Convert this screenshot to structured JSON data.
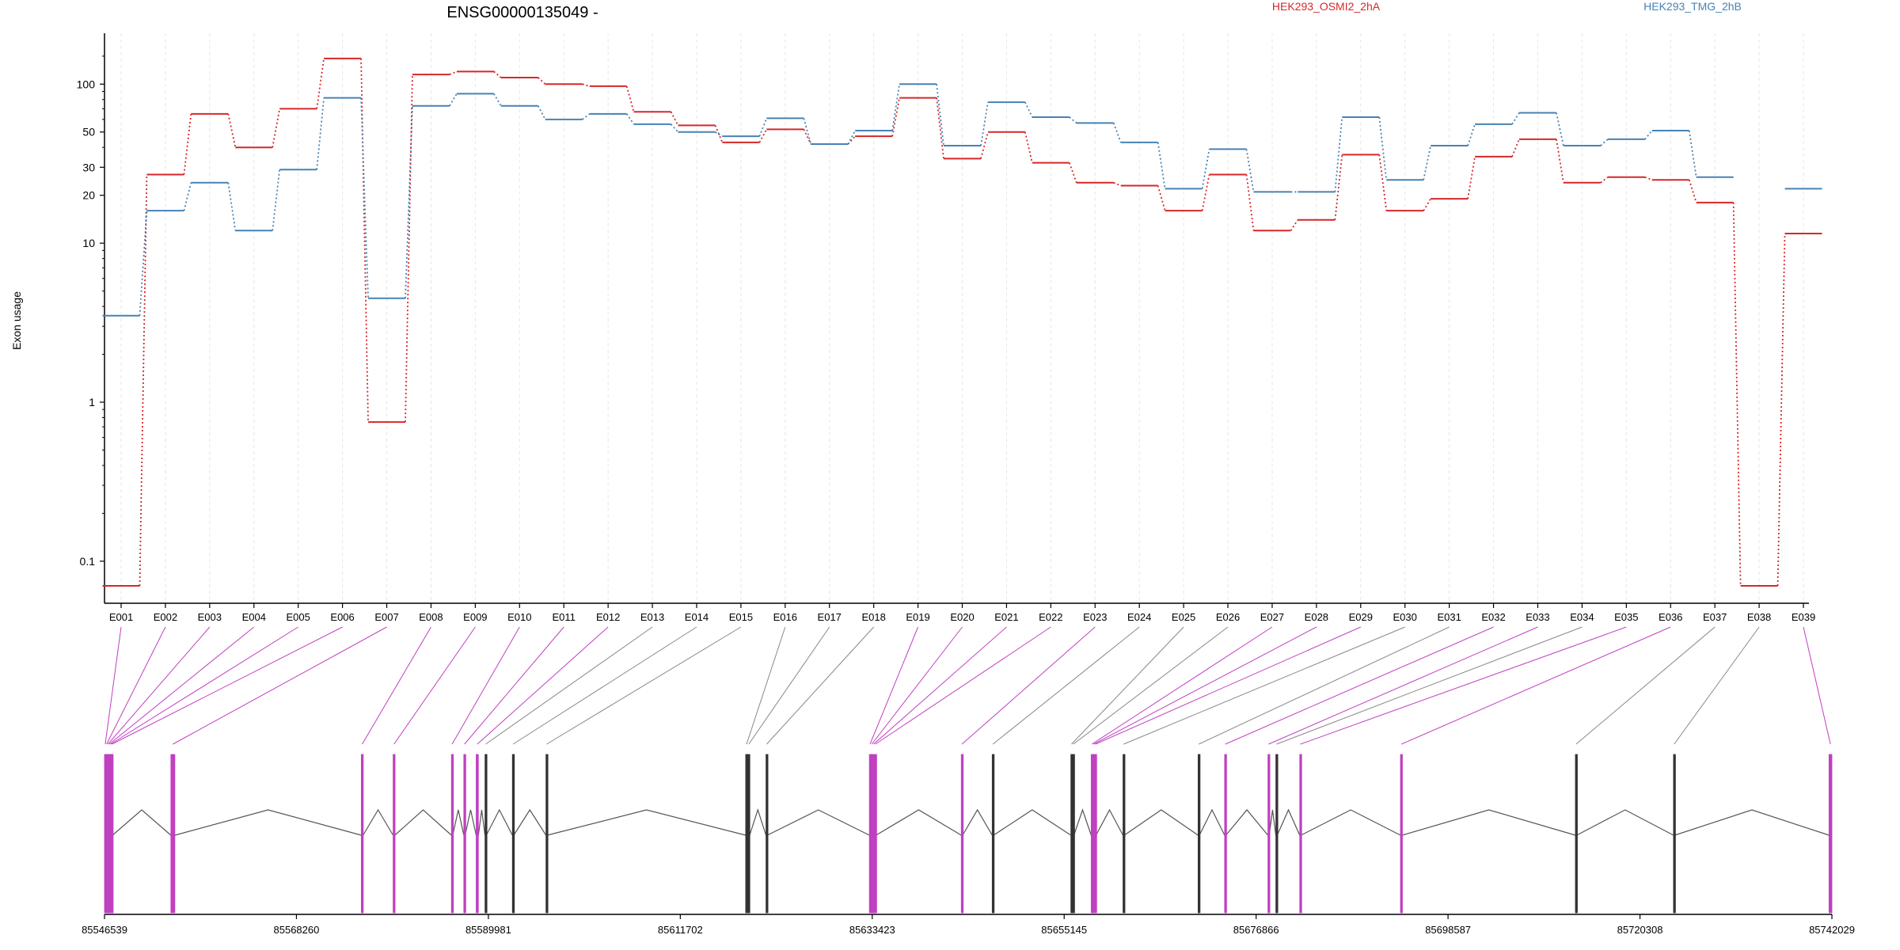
{
  "chart_data": {
    "type": "line",
    "title": "ENSG00000135049 -",
    "ylabel": "Exon usage",
    "yscale": "log",
    "ylim": [
      0.07,
      180
    ],
    "yticks": [
      0.1,
      1,
      10,
      20,
      30,
      50,
      100
    ],
    "ytick_labels": [
      "0.1",
      "1",
      "10",
      "20",
      "30",
      "50",
      "100"
    ],
    "grid": "vertical-dashed",
    "legend_placement": "top-right",
    "categories": [
      "E001",
      "E002",
      "E003",
      "E004",
      "E005",
      "E006",
      "E007",
      "E008",
      "E009",
      "E010",
      "E011",
      "E012",
      "E013",
      "E014",
      "E015",
      "E016",
      "E017",
      "E018",
      "E019",
      "E020",
      "E021",
      "E022",
      "E023",
      "E024",
      "E025",
      "E026",
      "E027",
      "E028",
      "E029",
      "E030",
      "E031",
      "E032",
      "E033",
      "E034",
      "E035",
      "E036",
      "E037",
      "E038",
      "E039"
    ],
    "series": [
      {
        "name": "HEK293_OSMI2_2hA",
        "color": "#d62728",
        "values": [
          0.07,
          27,
          65,
          40,
          70,
          145,
          0.75,
          115,
          120,
          110,
          100,
          97,
          67,
          55,
          43,
          52,
          42,
          47,
          82,
          34,
          50,
          32,
          24,
          23,
          16,
          27,
          12,
          14,
          36,
          16,
          19,
          35,
          45,
          24,
          26,
          25,
          18,
          0.07,
          11.5
        ]
      },
      {
        "name": "HEK293_TMG_2hB",
        "color": "#4682b4",
        "values": [
          3.5,
          16,
          24,
          12,
          29,
          82,
          4.5,
          73,
          87,
          73,
          60,
          65,
          56,
          50,
          47,
          61,
          42,
          51,
          100,
          41,
          77,
          62,
          57,
          43,
          22,
          39,
          21,
          21,
          62,
          25,
          41,
          56,
          66,
          41,
          45,
          51,
          26,
          null,
          22
        ]
      }
    ],
    "gene_model": {
      "axis_ticks": [
        "85546539",
        "85568260",
        "85589981",
        "85611702",
        "85633423",
        "85655145",
        "85676866",
        "85698587",
        "85720308",
        "85742029"
      ],
      "highlight_color": "#c040c0",
      "exons": [
        {
          "name": "E001",
          "start": 85546539,
          "end": 85546700,
          "highlight": true
        },
        {
          "name": "E002",
          "start": 85546700,
          "end": 85546850,
          "highlight": true
        },
        {
          "name": "E003",
          "start": 85546850,
          "end": 85547000,
          "highlight": true
        },
        {
          "name": "E004",
          "start": 85547000,
          "end": 85547150,
          "highlight": true
        },
        {
          "name": "E005",
          "start": 85547150,
          "end": 85547300,
          "highlight": true
        },
        {
          "name": "E006",
          "start": 85547300,
          "end": 85547450,
          "highlight": true
        },
        {
          "name": "E007",
          "start": 85554050,
          "end": 85554500,
          "highlight": true
        },
        {
          "name": "E008",
          "start": 85575600,
          "end": 85575800,
          "highlight": true
        },
        {
          "name": "E009",
          "start": 85579200,
          "end": 85579400,
          "highlight": true
        },
        {
          "name": "E010",
          "start": 85585800,
          "end": 85585950,
          "highlight": true
        },
        {
          "name": "E011",
          "start": 85587200,
          "end": 85587350,
          "highlight": true
        },
        {
          "name": "E012",
          "start": 85588600,
          "end": 85588850,
          "highlight": true
        },
        {
          "name": "E013",
          "start": 85589600,
          "end": 85589750,
          "highlight": false
        },
        {
          "name": "E014",
          "start": 85592700,
          "end": 85592850,
          "highlight": false
        },
        {
          "name": "E015",
          "start": 85596500,
          "end": 85596650,
          "highlight": false
        },
        {
          "name": "E016",
          "start": 85619100,
          "end": 85619300,
          "highlight": false
        },
        {
          "name": "E017",
          "start": 85619350,
          "end": 85619550,
          "highlight": false
        },
        {
          "name": "E018",
          "start": 85621400,
          "end": 85621550,
          "highlight": false
        },
        {
          "name": "E019",
          "start": 85633100,
          "end": 85633250,
          "highlight": true
        },
        {
          "name": "E020",
          "start": 85633300,
          "end": 85633450,
          "highlight": true
        },
        {
          "name": "E021",
          "start": 85633500,
          "end": 85633650,
          "highlight": true
        },
        {
          "name": "E022",
          "start": 85633700,
          "end": 85633850,
          "highlight": true
        },
        {
          "name": "E023",
          "start": 85643500,
          "end": 85643650,
          "highlight": true
        },
        {
          "name": "E024",
          "start": 85647000,
          "end": 85647150,
          "highlight": false
        },
        {
          "name": "E025",
          "start": 85655900,
          "end": 85656050,
          "highlight": false
        },
        {
          "name": "E026",
          "start": 85656100,
          "end": 85656250,
          "highlight": false
        },
        {
          "name": "E027",
          "start": 85658200,
          "end": 85658350,
          "highlight": true
        },
        {
          "name": "E028",
          "start": 85658400,
          "end": 85658550,
          "highlight": true
        },
        {
          "name": "E029",
          "start": 85658600,
          "end": 85658750,
          "highlight": true
        },
        {
          "name": "E030",
          "start": 85661800,
          "end": 85661950,
          "highlight": false
        },
        {
          "name": "E031",
          "start": 85670300,
          "end": 85670450,
          "highlight": false
        },
        {
          "name": "E032",
          "start": 85673300,
          "end": 85673450,
          "highlight": true
        },
        {
          "name": "E033",
          "start": 85678200,
          "end": 85678350,
          "highlight": true
        },
        {
          "name": "E034",
          "start": 85679100,
          "end": 85679250,
          "highlight": false
        },
        {
          "name": "E035",
          "start": 85681800,
          "end": 85681950,
          "highlight": true
        },
        {
          "name": "E036",
          "start": 85693200,
          "end": 85693400,
          "highlight": true
        },
        {
          "name": "E037",
          "start": 85713000,
          "end": 85713150,
          "highlight": false
        },
        {
          "name": "E038",
          "start": 85724100,
          "end": 85724250,
          "highlight": false
        },
        {
          "name": "E039",
          "start": 85741700,
          "end": 85742029,
          "highlight": true
        }
      ]
    }
  }
}
